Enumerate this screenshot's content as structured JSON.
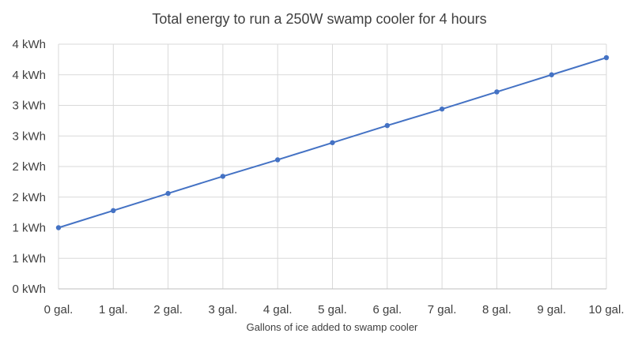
{
  "chart_data": {
    "type": "line",
    "title": "Total energy to run a 250W swamp cooler for 4 hours",
    "xlabel": "Gallons of ice added to swamp cooler",
    "ylabel": "",
    "categories": [
      "0 gal.",
      "1 gal.",
      "2 gal.",
      "3 gal.",
      "4 gal.",
      "5 gal.",
      "6 gal.",
      "7 gal.",
      "8 gal.",
      "9 gal.",
      "10 gal."
    ],
    "series": [
      {
        "values": [
          1.0,
          1.28,
          1.56,
          1.84,
          2.11,
          2.39,
          2.67,
          2.94,
          3.22,
          3.5,
          3.78
        ]
      }
    ],
    "ylim": [
      0,
      4
    ],
    "yticks": [
      {
        "value": 0,
        "label": "0 kWh"
      },
      {
        "value": 0.5,
        "label": "1 kWh"
      },
      {
        "value": 1.0,
        "label": "1 kWh"
      },
      {
        "value": 1.5,
        "label": "2 kWh"
      },
      {
        "value": 2.0,
        "label": "2 kWh"
      },
      {
        "value": 2.5,
        "label": "3 kWh"
      },
      {
        "value": 3.0,
        "label": "3 kWh"
      },
      {
        "value": 3.5,
        "label": "4 kWh"
      },
      {
        "value": 4.0,
        "label": "4 kWh"
      }
    ],
    "grid": true,
    "legend": "none",
    "colors": {
      "series": "#4472C4",
      "grid": "#D9D9D9",
      "text": "#404040"
    }
  }
}
